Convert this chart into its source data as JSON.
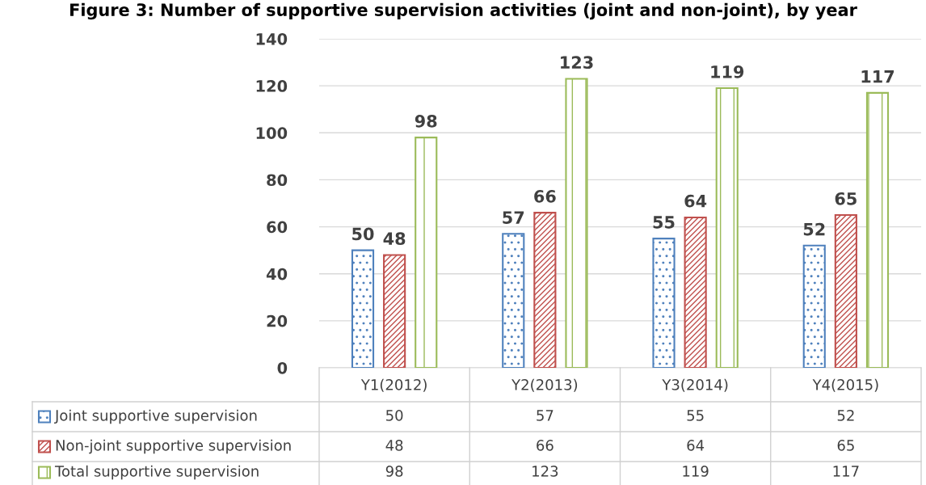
{
  "chart_data": {
    "type": "bar",
    "title": "Figure 3: Number of supportive supervision activities (joint and non-joint), by year",
    "categories": [
      "Y1(2012)",
      "Y2(2013)",
      "Y3(2014)",
      "Y4(2015)"
    ],
    "series": [
      {
        "name": "Joint supportive supervision",
        "color": "#4f81bd",
        "values": [
          50,
          57,
          55,
          52
        ],
        "value_labels": [
          "50",
          "57",
          "55",
          "52"
        ]
      },
      {
        "name": "Non-joint supportive supervision",
        "color": "#c0504d",
        "values": [
          48,
          66,
          64,
          65
        ],
        "value_labels": [
          "48",
          "66",
          "64",
          "65"
        ]
      },
      {
        "name": "Total supportive supervision",
        "color": "#9bbb59",
        "values": [
          98,
          123,
          119,
          117
        ],
        "value_labels": [
          "98",
          "123",
          "119",
          "117"
        ]
      }
    ],
    "ylim": [
      0,
      140
    ],
    "yticks": [
      0,
      20,
      40,
      60,
      80,
      100,
      120,
      140
    ],
    "annotations": [
      "50",
      "57",
      "55",
      "52",
      "48",
      "66",
      "64",
      "65",
      "98",
      "123",
      "119",
      "117"
    ],
    "grid": "y",
    "legend": "bottom"
  }
}
